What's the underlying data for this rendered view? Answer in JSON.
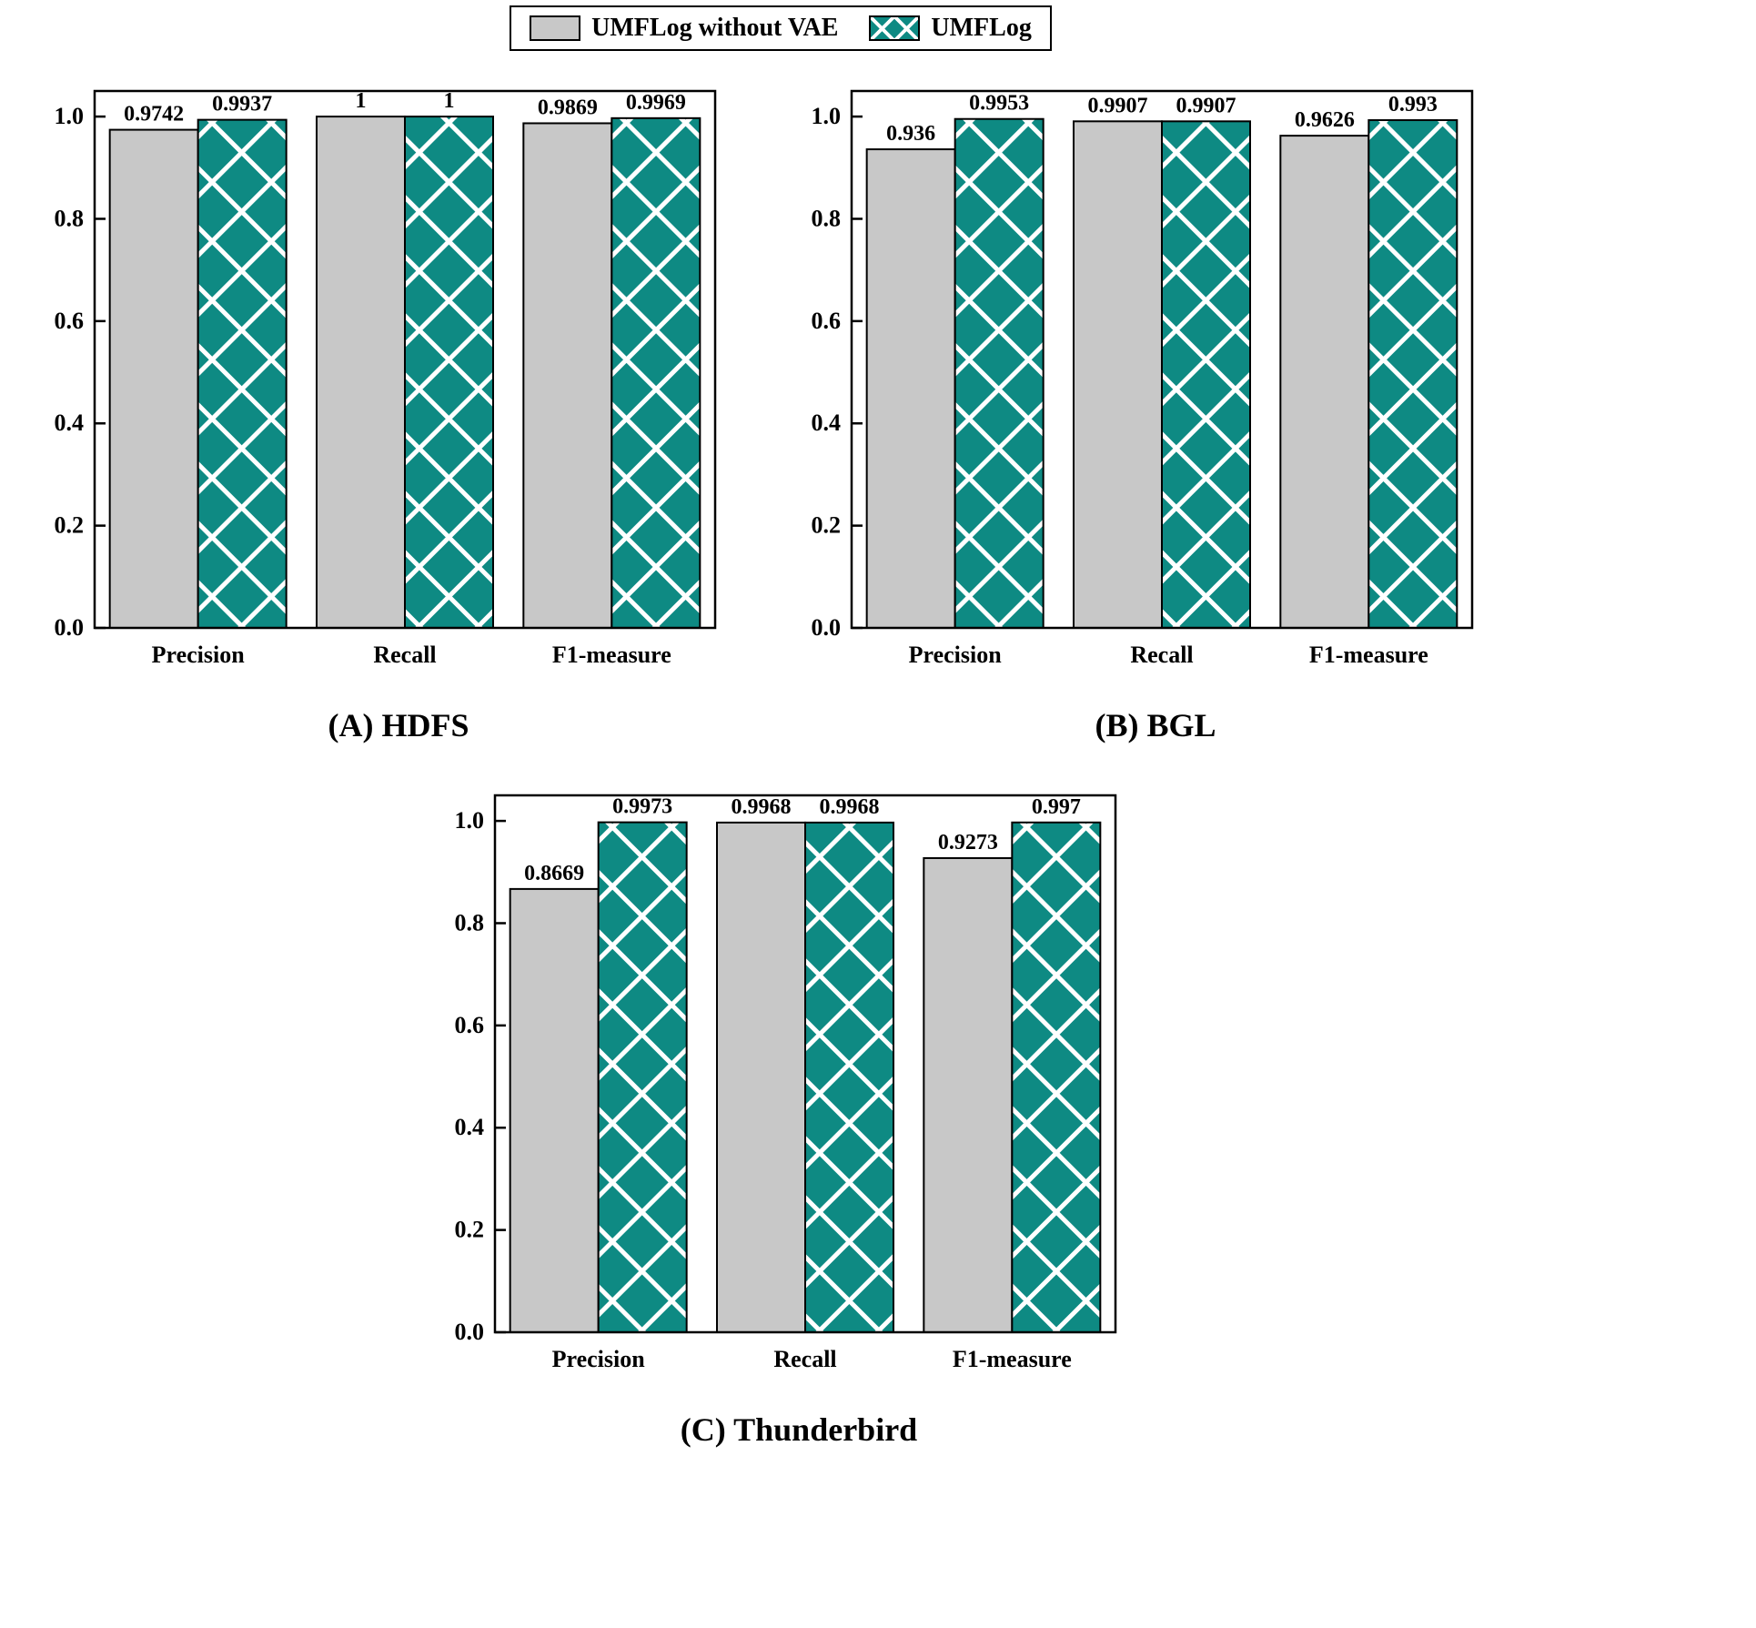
{
  "legend": {
    "items": [
      {
        "label": "UMFLog without VAE",
        "swatch": "solid-gray"
      },
      {
        "label": "UMFLog",
        "swatch": "teal-crosshatch"
      }
    ]
  },
  "colors": {
    "gray_bar": "#c8c8c8",
    "teal_bar": "#0e8a83",
    "hatch_line": "#ffffff",
    "bar_outline": "#000000",
    "axis": "#000000",
    "text": "#000000"
  },
  "chart_data": [
    {
      "type": "bar",
      "title": "(A) HDFS",
      "categories": [
        "Precision",
        "Recall",
        "F1-measure"
      ],
      "series": [
        {
          "name": "UMFLog without VAE",
          "values": [
            0.9742,
            1,
            0.9869
          ],
          "labels": [
            "0.9742",
            "1",
            "0.9869"
          ]
        },
        {
          "name": "UMFLog",
          "values": [
            0.9937,
            1,
            0.9969
          ],
          "labels": [
            "0.9937",
            "1",
            "0.9969"
          ]
        }
      ],
      "xlabel": "",
      "ylabel": "",
      "ylim": [
        0,
        1.05
      ],
      "yticks": [
        "0.0",
        "0.2",
        "0.4",
        "0.6",
        "0.8",
        "1.0"
      ],
      "grid": false,
      "legend_position": "top-center"
    },
    {
      "type": "bar",
      "title": "(B) BGL",
      "categories": [
        "Precision",
        "Recall",
        "F1-measure"
      ],
      "series": [
        {
          "name": "UMFLog without VAE",
          "values": [
            0.936,
            0.9907,
            0.9626
          ],
          "labels": [
            "0.936",
            "0.9907",
            "0.9626"
          ]
        },
        {
          "name": "UMFLog",
          "values": [
            0.9953,
            0.9907,
            0.993
          ],
          "labels": [
            "0.9953",
            "0.9907",
            "0.993"
          ]
        }
      ],
      "xlabel": "",
      "ylabel": "",
      "ylim": [
        0,
        1.05
      ],
      "yticks": [
        "0.0",
        "0.2",
        "0.4",
        "0.6",
        "0.8",
        "1.0"
      ],
      "grid": false,
      "legend_position": "top-center"
    },
    {
      "type": "bar",
      "title": "(C) Thunderbird",
      "categories": [
        "Precision",
        "Recall",
        "F1-measure"
      ],
      "series": [
        {
          "name": "UMFLog without VAE",
          "values": [
            0.8669,
            0.9968,
            0.9273
          ],
          "labels": [
            "0.8669",
            "0.9968",
            "0.9273"
          ]
        },
        {
          "name": "UMFLog",
          "values": [
            0.9973,
            0.9968,
            0.997
          ],
          "labels": [
            "0.9973",
            "0.9968",
            "0.997"
          ]
        }
      ],
      "xlabel": "",
      "ylabel": "",
      "ylim": [
        0,
        1.05
      ],
      "yticks": [
        "0.0",
        "0.2",
        "0.4",
        "0.6",
        "0.8",
        "1.0"
      ],
      "grid": false,
      "legend_position": "top-center"
    }
  ]
}
